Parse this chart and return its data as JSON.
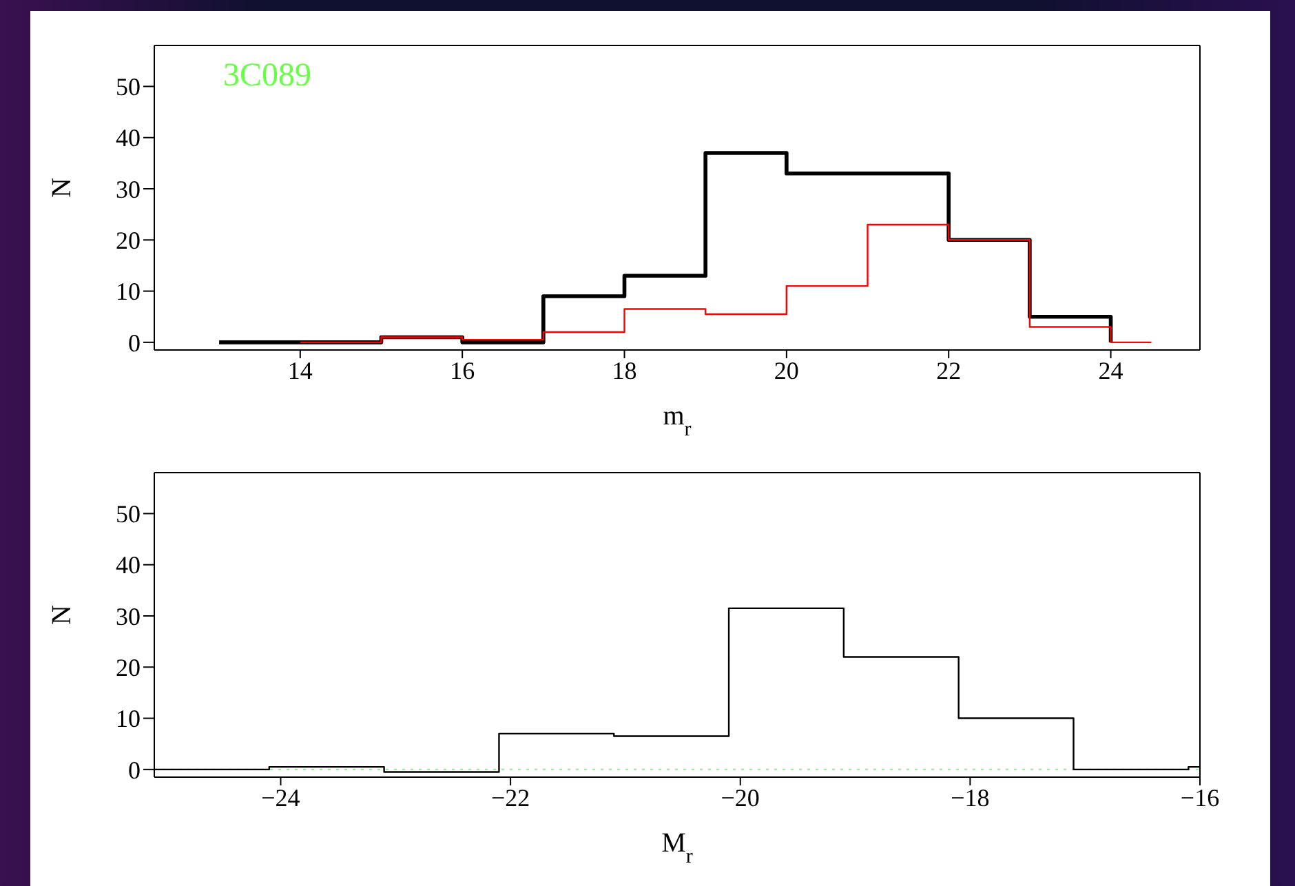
{
  "chart_data": [
    {
      "type": "step",
      "xlabel": "m$_{r}$",
      "ylabel": "N",
      "annotations": [
        "3C089"
      ],
      "series": [
        {
          "color": "#000000",
          "x": [
            13,
            14,
            15,
            16,
            17,
            18,
            19,
            20,
            21,
            22,
            23,
            24
          ],
          "values": [
            0,
            0,
            1,
            0,
            9,
            13,
            37,
            33,
            33,
            20,
            5,
            0
          ]
        },
        {
          "color": "#ff0000",
          "x": [
            14,
            15,
            16,
            17,
            18,
            19,
            20,
            21,
            22,
            23,
            24,
            24.5
          ],
          "values": [
            0,
            1,
            0.5,
            2,
            6.5,
            5.5,
            11,
            23,
            20,
            3,
            0,
            0
          ]
        }
      ],
      "xlim": [
        12.2,
        25.1
      ],
      "xticks": [
        14,
        16,
        18,
        20,
        22,
        24
      ],
      "ylim": [
        -1.5,
        58
      ],
      "yticks": [
        0,
        10,
        20,
        30,
        40,
        50
      ]
    },
    {
      "type": "step",
      "xlabel": "M$_{r}$",
      "ylabel": "N",
      "series": [
        {
          "color": "#000000",
          "x": [
            -25.1,
            -24.1,
            -23.1,
            -22.1,
            -21.1,
            -20.1,
            -19.1,
            -18.1,
            -17.1,
            -16.1,
            -16
          ],
          "values": [
            0,
            0.5,
            -0.5,
            7,
            6.5,
            31.5,
            22,
            10,
            0,
            0.5,
            0.5
          ]
        }
      ],
      "ref_lines": [
        {
          "axis": "y",
          "value": 0,
          "color": "#90ee90",
          "line_style": "dotted"
        }
      ],
      "xlim": [
        -25.1,
        -16
      ],
      "xticks": [
        -24,
        -22,
        -20,
        -18,
        -16
      ],
      "ylim": [
        -1.5,
        58
      ],
      "yticks": [
        0,
        10,
        20,
        30,
        40,
        50
      ]
    }
  ]
}
